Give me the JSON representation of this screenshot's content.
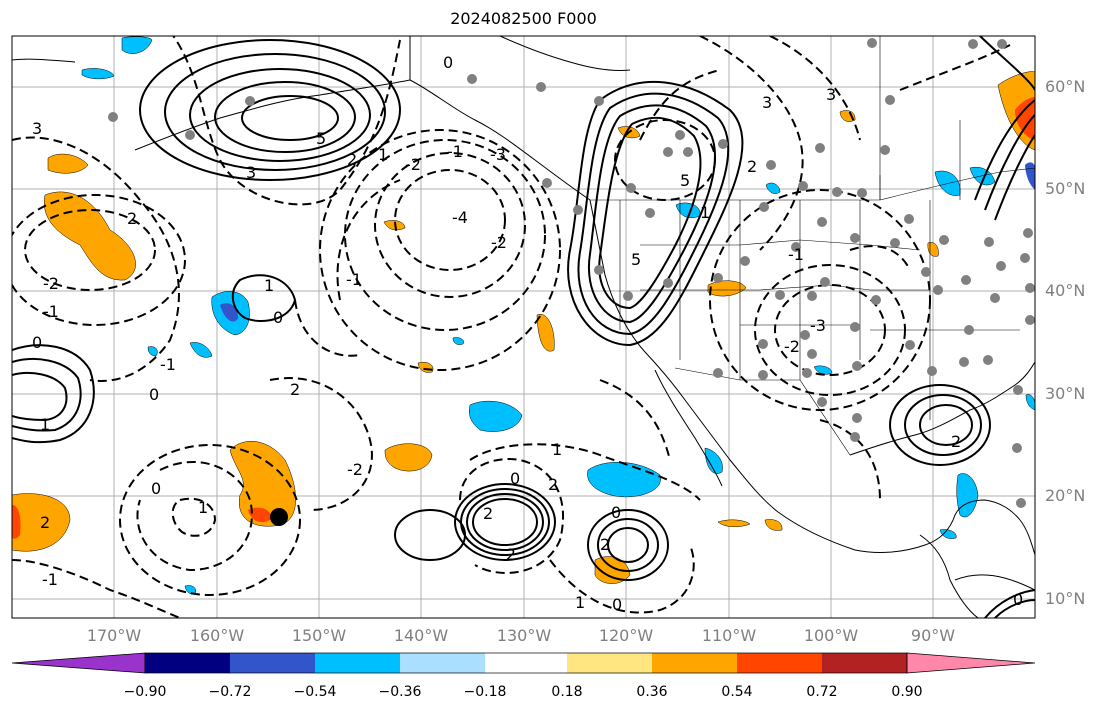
{
  "title": "2024082500 F000",
  "lat_labels": [
    "60°N",
    "50°N",
    "40°N",
    "30°N",
    "20°N",
    "10°N"
  ],
  "lon_labels": [
    "170°W",
    "160°W",
    "150°W",
    "140°W",
    "130°W",
    "120°W",
    "110°W",
    "100°W",
    "90°W"
  ],
  "contour_labels": [
    "0",
    "3",
    "5",
    "2",
    "1",
    "3",
    "-1",
    "-2",
    "-3",
    "-4",
    "5",
    "5",
    "3",
    "1",
    "2",
    "-2",
    "-1",
    "0",
    "1",
    "0",
    "2",
    "-2",
    "-1",
    "0",
    "1",
    "2",
    "-1",
    "1",
    "2",
    "-2",
    "0",
    "-1",
    "0",
    "2",
    "-2",
    "2",
    "1",
    "-3",
    "-2",
    "0",
    "2",
    "1",
    "0",
    "0",
    "3",
    "-1",
    "2"
  ],
  "colorbar": {
    "colors": [
      "#9933cc",
      "#000080",
      "#3355cc",
      "#00bfff",
      "#aadfff",
      "#ffffff",
      "#ffe680",
      "#ffa500",
      "#ff4500",
      "#b22222",
      "#ff88aa"
    ],
    "tick_labels": [
      "−0.90",
      "−0.72",
      "−0.54",
      "−0.36",
      "−0.18",
      "0.18",
      "0.36",
      "0.54",
      "0.72",
      "0.90"
    ]
  },
  "legend_colors": {
    "positive_fill": "#ffa500",
    "strong_positive_fill": "#ff4500",
    "negative_fill": "#00bfff",
    "strong_negative_fill": "#3355cc",
    "station_dots": "#808080",
    "storm_marker": "#000000"
  }
}
